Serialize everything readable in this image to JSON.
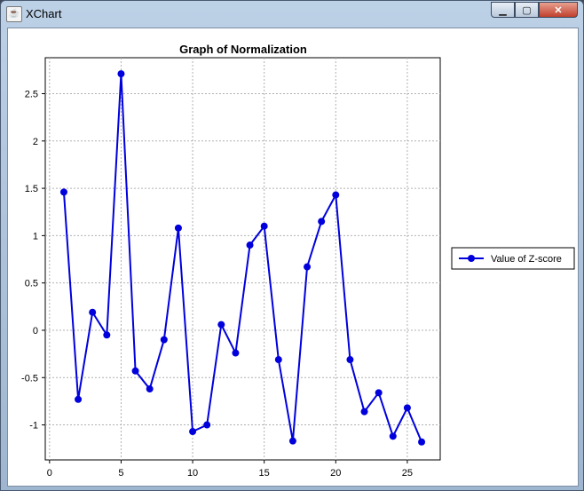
{
  "window": {
    "title": "XChart",
    "minimize_icon": "minimize-icon",
    "maximize_icon": "maximize-icon",
    "close_icon": "close-icon"
  },
  "chart_data": {
    "type": "line",
    "title": "Graph of Normalization",
    "xlabel": "",
    "ylabel": "",
    "xlim": [
      -0.3,
      27.3
    ],
    "ylim": [
      -1.37,
      2.88
    ],
    "x_ticks": [
      "0",
      "5",
      "10",
      "15",
      "20",
      "25"
    ],
    "y_ticks": [
      "-1",
      "-0.5",
      "0",
      "0.5",
      "1",
      "1.5",
      "2",
      "2.5"
    ],
    "grid": true,
    "legend_position": "right",
    "series": [
      {
        "name": "Value of Z-score",
        "color": "#0000dd",
        "x": [
          1,
          2,
          3,
          4,
          5,
          6,
          7,
          8,
          9,
          10,
          11,
          12,
          13,
          14,
          15,
          16,
          17,
          18,
          19,
          20,
          21,
          22,
          23,
          24,
          25,
          26
        ],
        "values": [
          1.46,
          -0.73,
          0.19,
          -0.05,
          2.71,
          -0.43,
          -0.62,
          -0.1,
          1.08,
          -1.07,
          -1.0,
          0.06,
          -0.24,
          0.9,
          1.1,
          -0.31,
          -1.17,
          0.67,
          1.15,
          1.43,
          -0.31,
          -0.86,
          -0.66,
          -1.12,
          -0.82,
          -1.18
        ]
      }
    ]
  }
}
